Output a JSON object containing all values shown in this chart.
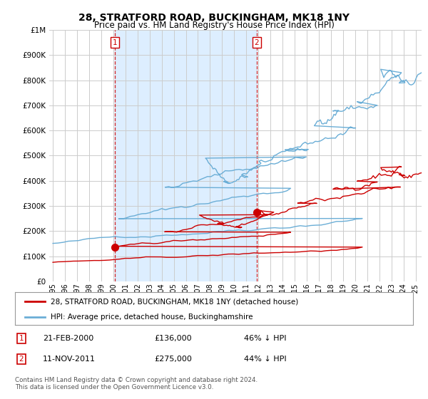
{
  "title": "28, STRATFORD ROAD, BUCKINGHAM, MK18 1NY",
  "subtitle": "Price paid vs. HM Land Registry's House Price Index (HPI)",
  "legend_line1": "28, STRATFORD ROAD, BUCKINGHAM, MK18 1NY (detached house)",
  "legend_line2": "HPI: Average price, detached house, Buckinghamshire",
  "annotation1_label": "1",
  "annotation1_date": "21-FEB-2000",
  "annotation1_price": "£136,000",
  "annotation1_pct": "46% ↓ HPI",
  "annotation2_label": "2",
  "annotation2_date": "11-NOV-2011",
  "annotation2_price": "£275,000",
  "annotation2_pct": "44% ↓ HPI",
  "footer": "Contains HM Land Registry data © Crown copyright and database right 2024.\nThis data is licensed under the Open Government Licence v3.0.",
  "hpi_color": "#6baed6",
  "price_color": "#cc0000",
  "vline_color": "#cc0000",
  "shade_color": "#ddeeff",
  "ylim": [
    0,
    1000000
  ],
  "yticks": [
    0,
    100000,
    200000,
    300000,
    400000,
    500000,
    600000,
    700000,
    800000,
    900000,
    1000000
  ],
  "ytick_labels": [
    "£0",
    "£100K",
    "£200K",
    "£300K",
    "£400K",
    "£500K",
    "£600K",
    "£700K",
    "£800K",
    "£900K",
    "£1M"
  ],
  "vline1_x": 2000.12,
  "vline2_x": 2011.87,
  "dot1_x": 2000.12,
  "dot1_y": 136000,
  "dot2_x": 2011.87,
  "dot2_y": 275000,
  "background_color": "#ffffff",
  "grid_color": "#cccccc",
  "xtick_years": [
    1995,
    1996,
    1997,
    1998,
    1999,
    2000,
    2001,
    2002,
    2003,
    2004,
    2005,
    2006,
    2007,
    2008,
    2009,
    2010,
    2011,
    2012,
    2013,
    2014,
    2015,
    2016,
    2017,
    2018,
    2019,
    2020,
    2021,
    2022,
    2023,
    2024,
    2025
  ],
  "xlim_left": 1994.7,
  "xlim_right": 2025.5
}
